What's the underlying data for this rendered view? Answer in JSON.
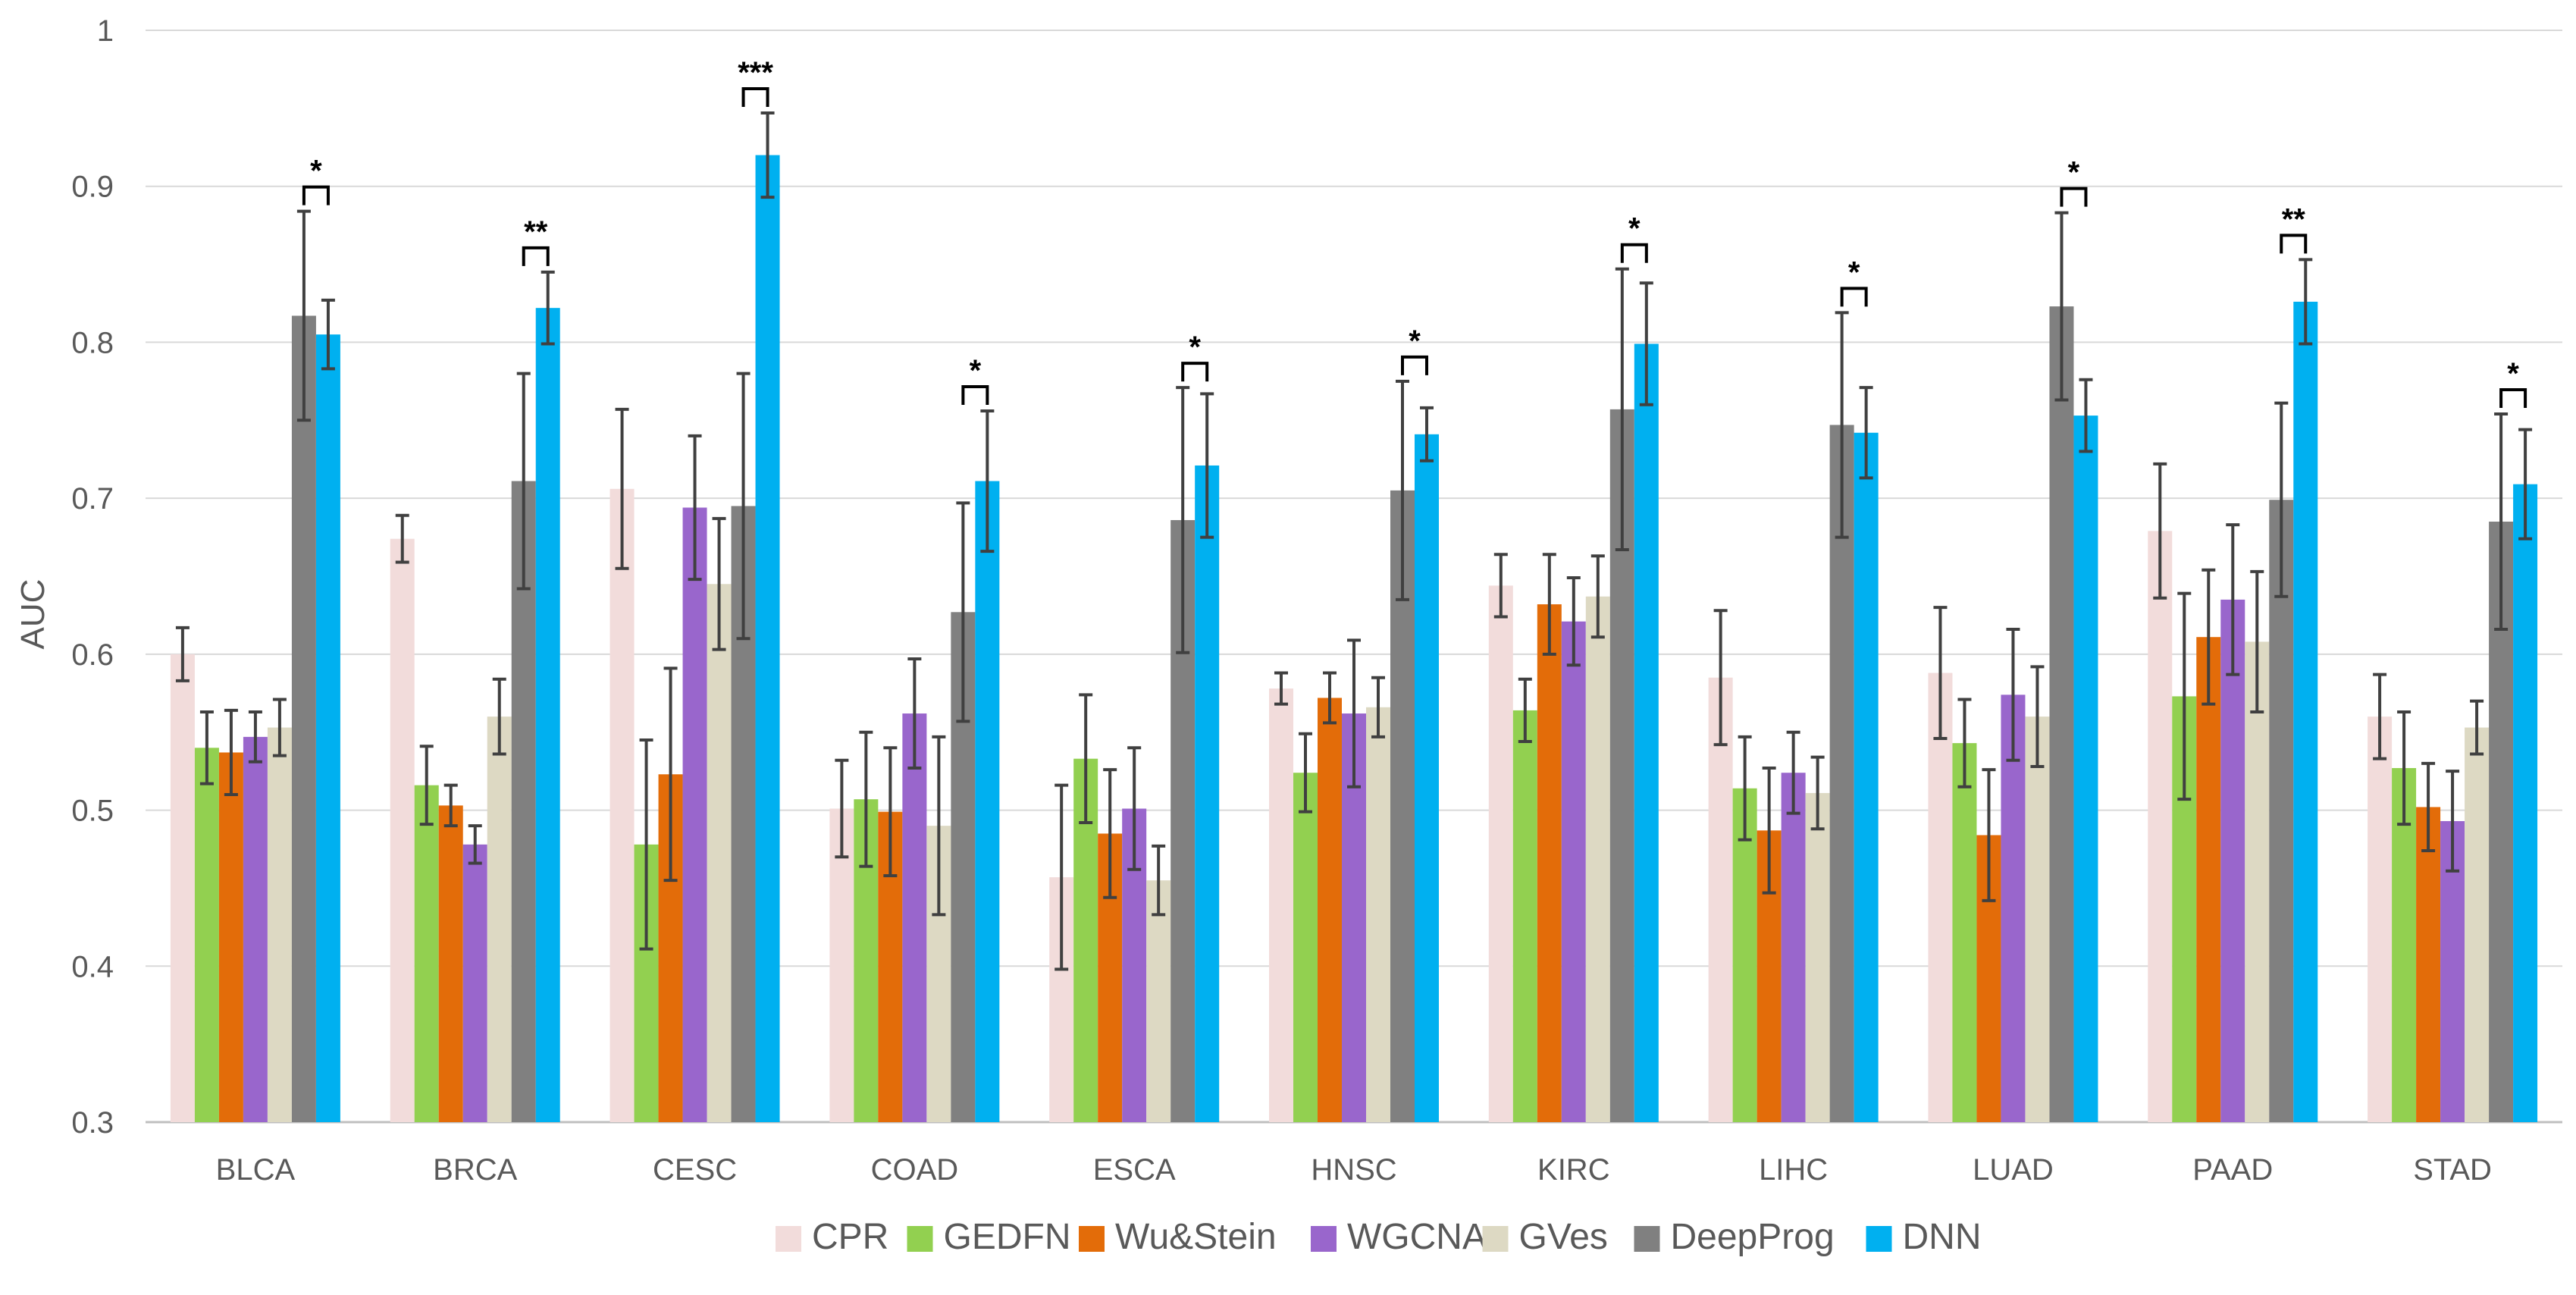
{
  "chart_data": {
    "type": "bar",
    "title": "",
    "xlabel": "",
    "ylabel": "AUC",
    "ylim": [
      0.3,
      1.0
    ],
    "yticks": [
      "0.3",
      "0.4",
      "0.5",
      "0.6",
      "0.7",
      "0.8",
      "0.9",
      "1"
    ],
    "grid": true,
    "legend_position": "bottom",
    "categories": [
      "BLCA",
      "BRCA",
      "CESC",
      "COAD",
      "ESCA",
      "HNSC",
      "KIRC",
      "LIHC",
      "LUAD",
      "PAAD",
      "STAD"
    ],
    "series": [
      {
        "name": "CPR",
        "color": "#f2dcdb",
        "values": [
          0.6,
          0.674,
          0.706,
          0.501,
          0.457,
          0.578,
          0.644,
          0.585,
          0.588,
          0.679,
          0.56
        ],
        "errors": [
          0.017,
          0.015,
          0.051,
          0.031,
          0.059,
          0.01,
          0.02,
          0.043,
          0.042,
          0.043,
          0.027
        ]
      },
      {
        "name": "GEDFN",
        "color": "#92d050",
        "values": [
          0.54,
          0.516,
          0.478,
          0.507,
          0.533,
          0.524,
          0.564,
          0.514,
          0.543,
          0.573,
          0.527
        ],
        "errors": [
          0.023,
          0.025,
          0.067,
          0.043,
          0.041,
          0.025,
          0.02,
          0.033,
          0.028,
          0.066,
          0.036
        ]
      },
      {
        "name": "Wu&Stein",
        "color": "#e36c09",
        "values": [
          0.537,
          0.503,
          0.523,
          0.499,
          0.485,
          0.572,
          0.632,
          0.487,
          0.484,
          0.611,
          0.502
        ],
        "errors": [
          0.027,
          0.013,
          0.068,
          0.041,
          0.041,
          0.016,
          0.032,
          0.04,
          0.042,
          0.043,
          0.028
        ]
      },
      {
        "name": "WGCNA",
        "color": "#9966cc",
        "values": [
          0.547,
          0.478,
          0.694,
          0.562,
          0.501,
          0.562,
          0.621,
          0.524,
          0.574,
          0.635,
          0.493
        ],
        "errors": [
          0.016,
          0.012,
          0.046,
          0.035,
          0.039,
          0.047,
          0.028,
          0.026,
          0.042,
          0.048,
          0.032
        ]
      },
      {
        "name": "GVes",
        "color": "#ddd9c3",
        "values": [
          0.553,
          0.56,
          0.645,
          0.49,
          0.455,
          0.566,
          0.637,
          0.511,
          0.56,
          0.608,
          0.553
        ],
        "errors": [
          0.018,
          0.024,
          0.042,
          0.057,
          0.022,
          0.019,
          0.026,
          0.023,
          0.032,
          0.045,
          0.017
        ]
      },
      {
        "name": "DeepProg",
        "color": "#808080",
        "values": [
          0.817,
          0.711,
          0.695,
          0.627,
          0.686,
          0.705,
          0.757,
          0.747,
          0.823,
          0.699,
          0.685
        ],
        "errors": [
          0.067,
          0.069,
          0.085,
          0.07,
          0.085,
          0.07,
          0.09,
          0.072,
          0.06,
          0.062,
          0.069
        ]
      },
      {
        "name": "DNN",
        "color": "#00b0f0",
        "values": [
          0.805,
          0.822,
          0.92,
          0.711,
          0.721,
          0.741,
          0.799,
          0.742,
          0.753,
          0.826,
          0.709
        ],
        "errors": [
          0.022,
          0.023,
          0.027,
          0.045,
          0.046,
          0.017,
          0.039,
          0.029,
          0.023,
          0.027,
          0.035
        ]
      }
    ],
    "significance": [
      {
        "category": "BLCA",
        "label": "*"
      },
      {
        "category": "BRCA",
        "label": "**"
      },
      {
        "category": "CESC",
        "label": "***"
      },
      {
        "category": "COAD",
        "label": "*"
      },
      {
        "category": "ESCA",
        "label": "*"
      },
      {
        "category": "HNSC",
        "label": "*"
      },
      {
        "category": "KIRC",
        "label": "*"
      },
      {
        "category": "LIHC",
        "label": "*"
      },
      {
        "category": "LUAD",
        "label": "*"
      },
      {
        "category": "PAAD",
        "label": "**"
      },
      {
        "category": "STAD",
        "label": "*"
      }
    ]
  }
}
